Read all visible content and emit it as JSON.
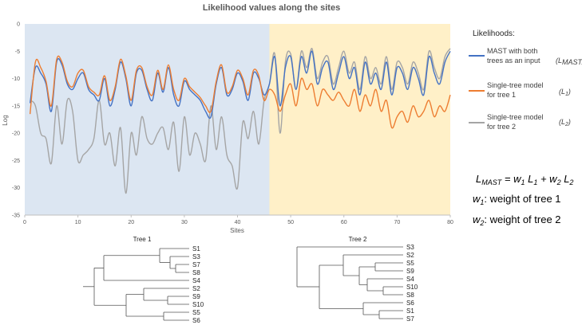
{
  "chart_data": {
    "type": "line",
    "title": "Likelihood values along the sites",
    "xlabel": "Sites",
    "ylabel": "Log",
    "xlim": [
      0,
      80
    ],
    "ylim": [
      -35,
      0
    ],
    "xticks": [
      "0",
      "10",
      "20",
      "30",
      "40",
      "50",
      "60",
      "70",
      "80"
    ],
    "yticks": [
      "0",
      "-5",
      "-10",
      "-15",
      "-20",
      "-25",
      "-30",
      "-35"
    ],
    "regions": [
      {
        "name": "tree-1-region",
        "x_range": [
          0,
          46
        ],
        "color": "#dce6f2"
      },
      {
        "name": "tree-2-region",
        "x_range": [
          46,
          80
        ],
        "color": "#fff0c8"
      }
    ],
    "legend_title": "Likelihoods:",
    "series": [
      {
        "key": "mast",
        "name": "MAST with both trees as an input",
        "label_lines": [
          "MAST with both",
          "trees as an input"
        ],
        "symbol": "L",
        "symbol_sub": "MAST",
        "color": "#4472c4",
        "x": [
          1,
          2,
          3,
          4,
          5,
          6,
          7,
          8,
          9,
          10,
          11,
          12,
          13,
          14,
          15,
          16,
          17,
          18,
          19,
          20,
          21,
          22,
          23,
          24,
          25,
          26,
          27,
          28,
          29,
          30,
          31,
          32,
          33,
          34,
          35,
          36,
          37,
          38,
          39,
          40,
          41,
          42,
          43,
          44,
          45,
          46,
          47,
          48,
          49,
          50,
          51,
          52,
          53,
          54,
          55,
          56,
          57,
          58,
          59,
          60,
          61,
          62,
          63,
          64,
          65,
          66,
          67,
          68,
          69,
          70,
          71,
          72,
          73,
          74,
          75,
          76,
          77,
          78,
          79,
          80
        ],
        "y": [
          -14.5,
          -8,
          -9,
          -11,
          -16,
          -7,
          -7.5,
          -11,
          -12,
          -10,
          -9,
          -12,
          -13,
          -14,
          -10,
          -15,
          -12,
          -7,
          -10,
          -15,
          -9,
          -8.5,
          -12,
          -14,
          -9,
          -12.5,
          -8,
          -13,
          -15,
          -10.5,
          -12,
          -13,
          -14,
          -16,
          -17,
          -11,
          -8,
          -13,
          -12,
          -9,
          -10.5,
          -14,
          -9,
          -10,
          -13,
          -11,
          -6,
          -15,
          -8,
          -6,
          -12,
          -6,
          -9,
          -5,
          -11,
          -8,
          -7,
          -12,
          -9,
          -6,
          -10,
          -8,
          -13,
          -7,
          -11,
          -9,
          -12,
          -7,
          -13,
          -8,
          -9,
          -12,
          -8,
          -10,
          -13,
          -6,
          -9,
          -11,
          -7,
          -5
        ]
      },
      {
        "key": "l1",
        "name": "Single-tree model for tree 1",
        "label_lines": [
          "Single-tree model",
          "for tree 1"
        ],
        "symbol": "L",
        "symbol_sub": "1",
        "color": "#ed7d31",
        "x": [
          1,
          2,
          3,
          4,
          5,
          6,
          7,
          8,
          9,
          10,
          11,
          12,
          13,
          14,
          15,
          16,
          17,
          18,
          19,
          20,
          21,
          22,
          23,
          24,
          25,
          26,
          27,
          28,
          29,
          30,
          31,
          32,
          33,
          34,
          35,
          36,
          37,
          38,
          39,
          40,
          41,
          42,
          43,
          44,
          45,
          46,
          47,
          48,
          49,
          50,
          51,
          52,
          53,
          54,
          55,
          56,
          57,
          58,
          59,
          60,
          61,
          62,
          63,
          64,
          65,
          66,
          67,
          68,
          69,
          70,
          71,
          72,
          73,
          74,
          75,
          76,
          77,
          78,
          79,
          80
        ],
        "y": [
          -16.5,
          -7,
          -8,
          -10.5,
          -15,
          -6.5,
          -7,
          -10.5,
          -11.5,
          -9,
          -8.5,
          -11.5,
          -12.5,
          -13,
          -9.5,
          -14,
          -11.5,
          -6.5,
          -9.5,
          -14,
          -8.5,
          -8,
          -11.5,
          -13,
          -8.5,
          -12,
          -7.5,
          -12,
          -14,
          -10,
          -11.5,
          -12.5,
          -13.5,
          -15,
          -16,
          -10.5,
          -7.5,
          -12.5,
          -11.5,
          -8.5,
          -10,
          -13,
          -8.5,
          -9.5,
          -14,
          -12,
          -13,
          -16,
          -13,
          -11,
          -15,
          -10,
          -12,
          -11,
          -15,
          -12,
          -13,
          -14,
          -12.5,
          -14,
          -15,
          -12,
          -16,
          -13,
          -15,
          -12,
          -16,
          -14,
          -19,
          -17,
          -16,
          -18,
          -15,
          -17,
          -16,
          -14,
          -17,
          -15,
          -16,
          -13
        ]
      },
      {
        "key": "l2",
        "name": "Single-tree model for tree 2",
        "label_lines": [
          "Single-tree model",
          "for tree 2"
        ],
        "symbol": "L",
        "symbol_sub": "2",
        "color": "#a5a5a5",
        "x": [
          1,
          2,
          3,
          4,
          5,
          6,
          7,
          8,
          9,
          10,
          11,
          12,
          13,
          14,
          15,
          16,
          17,
          18,
          19,
          20,
          21,
          22,
          23,
          24,
          25,
          26,
          27,
          28,
          29,
          30,
          31,
          32,
          33,
          34,
          35,
          36,
          37,
          38,
          39,
          40,
          41,
          42,
          43,
          44,
          45,
          46,
          47,
          48,
          49,
          50,
          51,
          52,
          53,
          54,
          55,
          56,
          57,
          58,
          59,
          60,
          61,
          62,
          63,
          64,
          65,
          66,
          67,
          68,
          69,
          70,
          71,
          72,
          73,
          74,
          75,
          76,
          77,
          78,
          79,
          80
        ],
        "y": [
          -14,
          -15,
          -20,
          -21,
          -25.5,
          -15,
          -22,
          -14,
          -16,
          -25,
          -24,
          -23,
          -21,
          -14,
          -22,
          -20,
          -26,
          -19,
          -31,
          -20,
          -24,
          -17,
          -21,
          -22,
          -20,
          -19,
          -23,
          -18,
          -27,
          -17,
          -24,
          -20,
          -22,
          -25,
          -15,
          -23,
          -17,
          -24,
          -26,
          -30,
          -18,
          -21,
          -16,
          -22,
          -14,
          -11,
          -5.5,
          -20,
          -7,
          -5.5,
          -12,
          -5,
          -8,
          -4.5,
          -10,
          -7,
          -6,
          -11,
          -8,
          -5,
          -9,
          -7,
          -12,
          -6,
          -10,
          -8,
          -11,
          -6,
          -12,
          -7,
          -8,
          -11,
          -7,
          -9,
          -12,
          -5,
          -8,
          -10,
          -6,
          -4.5
        ]
      }
    ]
  },
  "equations": {
    "main": {
      "lhs": "L",
      "lhs_sub": "MAST",
      "eq": " = ",
      "w1": "w",
      "w1_sub": "1",
      "l1": " L",
      "l1_sub": "1",
      "plus": " + ",
      "w2": "w",
      "w2_sub": "2",
      "l2": " L",
      "l2_sub": "2"
    },
    "w1_line": {
      "sym": "w",
      "sub": "1",
      "text": ": weight of tree 1"
    },
    "w2_line": {
      "sym": "w",
      "sub": "2",
      "text": ": weight of tree 2"
    }
  },
  "trees": [
    {
      "title": "Tree 1",
      "leaves": [
        "S1",
        "S3",
        "S7",
        "S8",
        "S4",
        "S2",
        "S9",
        "S10",
        "S5",
        "S6"
      ]
    },
    {
      "title": "Tree 2",
      "leaves": [
        "S3",
        "S2",
        "S5",
        "S9",
        "S4",
        "S10",
        "S8",
        "S6",
        "S1",
        "S7"
      ]
    }
  ],
  "colors": {
    "axis": "#bfbfbf",
    "text": "#595959"
  }
}
